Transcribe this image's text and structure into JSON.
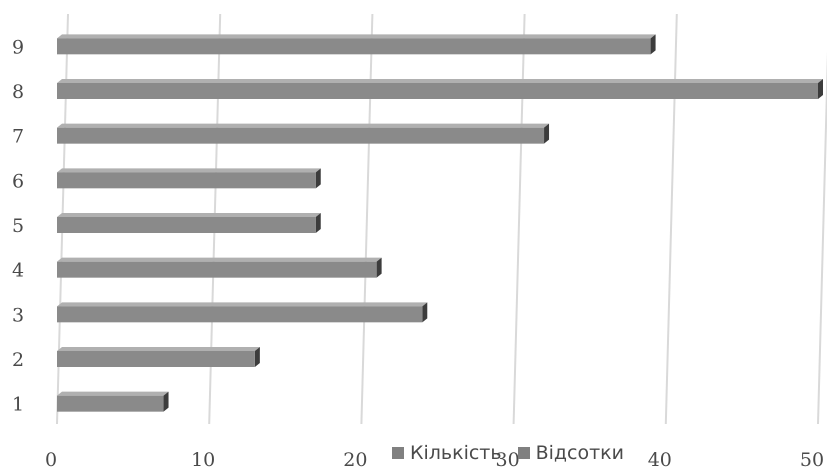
{
  "chart_data": {
    "type": "bar",
    "orientation": "horizontal",
    "style": "3d",
    "categories": [
      "1",
      "2",
      "3",
      "4",
      "5",
      "6",
      "7",
      "8",
      "9"
    ],
    "series": [
      {
        "name": "Кількість",
        "values": [
          7,
          13,
          24,
          21,
          17,
          17,
          32,
          50,
          39
        ]
      }
    ],
    "legend": [
      "Кількість",
      "Відсотки"
    ],
    "xlim": [
      0,
      50
    ],
    "xticks": [
      "0",
      "10",
      "20",
      "30",
      "40",
      "50"
    ],
    "grid": true,
    "legend_position": "bottom",
    "colors": {
      "bar_front": "#8a8a8a",
      "bar_top": "#b0b0b0",
      "bar_side": "#3c3c3c",
      "grid": "#d9d9d9",
      "label": "#4a4a4a"
    }
  }
}
